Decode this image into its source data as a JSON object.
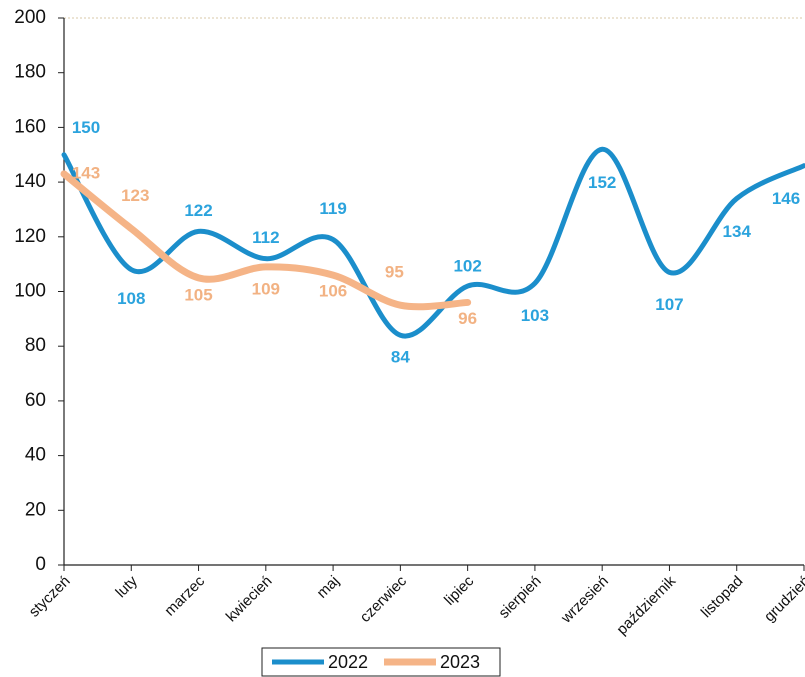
{
  "chart_data": {
    "type": "line",
    "categories": [
      "styczeń",
      "luty",
      "marzec",
      "kwiecień",
      "maj",
      "czerwiec",
      "lipiec",
      "sierpień",
      "wrzesień",
      "październik",
      "listopad",
      "grudzień"
    ],
    "series": [
      {
        "name": "2022",
        "color": "#1b8ecb",
        "label_color": "#2ba3dd",
        "values": [
          150,
          108,
          122,
          112,
          119,
          84,
          102,
          103,
          152,
          107,
          134,
          146
        ]
      },
      {
        "name": "2023",
        "color": "#f5b487",
        "label_color": "#f2b283",
        "values": [
          143,
          123,
          105,
          109,
          106,
          95,
          96,
          null,
          null,
          null,
          null,
          null
        ]
      }
    ],
    "ylim": [
      0,
      200
    ],
    "yticks": [
      0,
      20,
      40,
      60,
      80,
      100,
      120,
      140,
      160,
      180,
      200
    ],
    "grid": false,
    "legend": "bottom"
  }
}
